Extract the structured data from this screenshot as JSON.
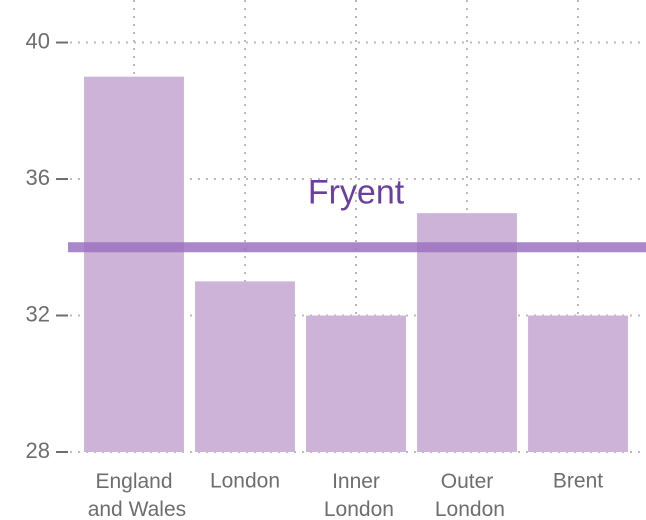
{
  "chart_data": {
    "type": "bar",
    "categories": [
      "England and Wales",
      "London",
      "Inner London",
      "Outer London",
      "Brent"
    ],
    "values": [
      39,
      33,
      32,
      35,
      32
    ],
    "color": "#cdb3d8",
    "ylim": [
      28,
      41.1
    ],
    "yticks": [
      28,
      32,
      36,
      40
    ],
    "grid": true,
    "reference_line": {
      "value": 34,
      "label": "Fryent",
      "color": "#9b72c1",
      "label_color": "#6b3fa0"
    }
  }
}
